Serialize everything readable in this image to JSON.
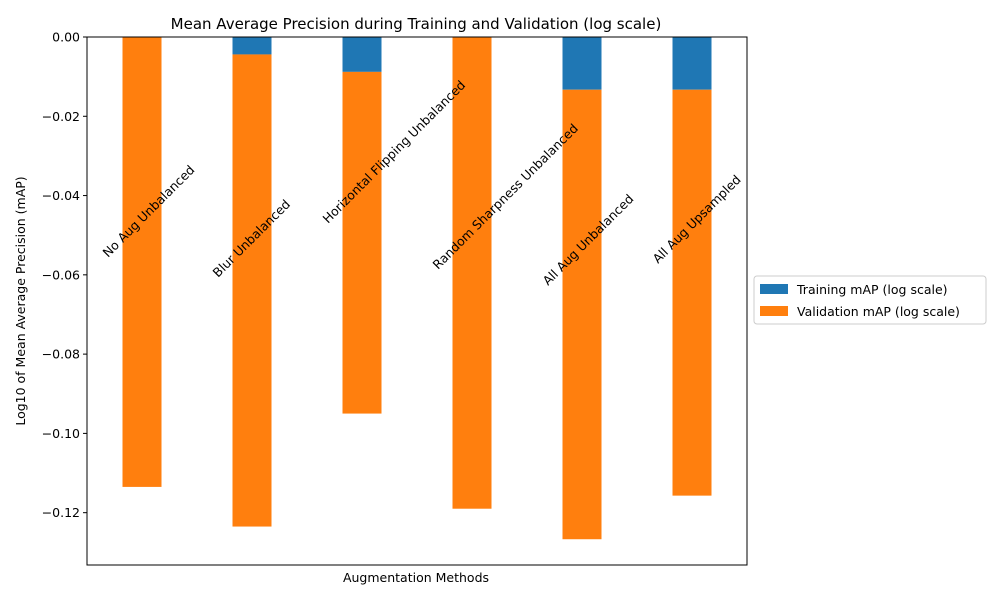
{
  "chart_data": {
    "type": "bar",
    "title": "Mean Average Precision during Training and Validation (log scale)",
    "xlabel": "Augmentation Methods",
    "ylabel": "Log10 of Mean Average Precision (mAP)",
    "ylim": [
      -0.1332,
      0.0
    ],
    "yticks": [
      "0.00",
      "−0.02",
      "−0.04",
      "−0.06",
      "−0.08",
      "−0.10",
      "−0.12"
    ],
    "ytick_values": [
      0.0,
      -0.02,
      -0.04,
      -0.06,
      -0.08,
      -0.1,
      -0.12
    ],
    "grid": false,
    "legend_position": "outside-right",
    "categories": [
      "No Aug Unbalanced",
      "Blur Unbalanced",
      "Horizontal Flipping Unbalanced",
      "Random Sharpness Unbalanced",
      "All Aug Unbalanced",
      "All Aug Upsampled"
    ],
    "series": [
      {
        "name": "Training mAP (log scale)",
        "color": "#1f77b4",
        "values": [
          0.0,
          -0.0044,
          -0.0088,
          0.0,
          -0.0133,
          -0.0133
        ]
      },
      {
        "name": "Validation mAP (log scale)",
        "color": "#ff7f0e",
        "values": [
          -0.1135,
          -0.1235,
          -0.095,
          -0.119,
          -0.1267,
          -0.1157
        ]
      }
    ]
  }
}
